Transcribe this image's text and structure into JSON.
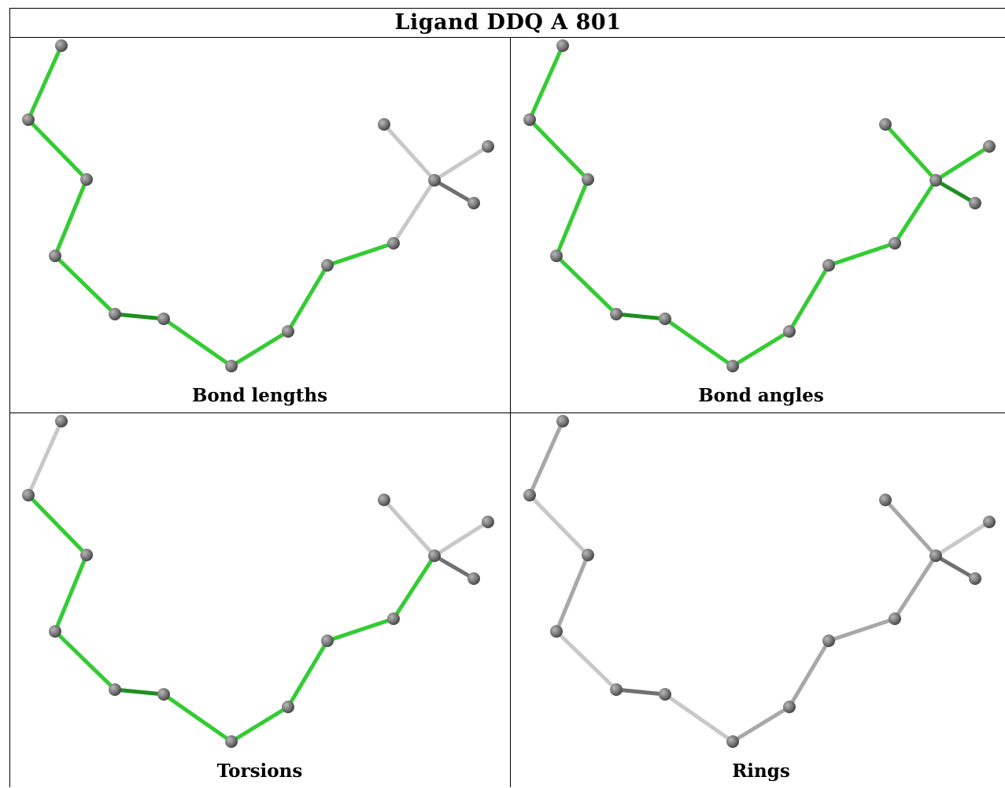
{
  "title": "Ligand DDQ A 801",
  "panels": [
    {
      "caption": "Bond lengths"
    },
    {
      "caption": "Bond angles"
    },
    {
      "caption": "Torsions"
    },
    {
      "caption": "Rings"
    }
  ],
  "colors": {
    "green_bright": "#33cc33",
    "green_dark": "#1f8f1f",
    "grey_light": "#c8c8c8",
    "grey_mid": "#a8a8a8",
    "grey_dark": "#707070",
    "atom": "#7a7a7a"
  },
  "molecule": {
    "bonds": [
      [
        0,
        1
      ],
      [
        1,
        2
      ],
      [
        2,
        3
      ],
      [
        3,
        4
      ],
      [
        4,
        5
      ],
      [
        5,
        6
      ],
      [
        6,
        7
      ],
      [
        7,
        8
      ],
      [
        8,
        9
      ],
      [
        9,
        10
      ],
      [
        10,
        11
      ],
      [
        10,
        12
      ],
      [
        10,
        13
      ]
    ],
    "bond_colors": [
      [
        "g",
        "g",
        "g",
        "g",
        "gd",
        "g",
        "g",
        "g",
        "g",
        "lg",
        "lg",
        "lg",
        "dg"
      ],
      [
        "g",
        "g",
        "g",
        "g",
        "gd",
        "g",
        "g",
        "g",
        "g",
        "g",
        "g",
        "g",
        "gd"
      ],
      [
        "lg",
        "g",
        "g",
        "g",
        "gd",
        "g",
        "g",
        "g",
        "g",
        "g",
        "lg",
        "lg",
        "dg"
      ],
      [
        "mg",
        "lg",
        "mg",
        "lg",
        "dg",
        "lg",
        "mg",
        "mg",
        "mg",
        "mg",
        "mg",
        "lg",
        "dg"
      ]
    ]
  }
}
